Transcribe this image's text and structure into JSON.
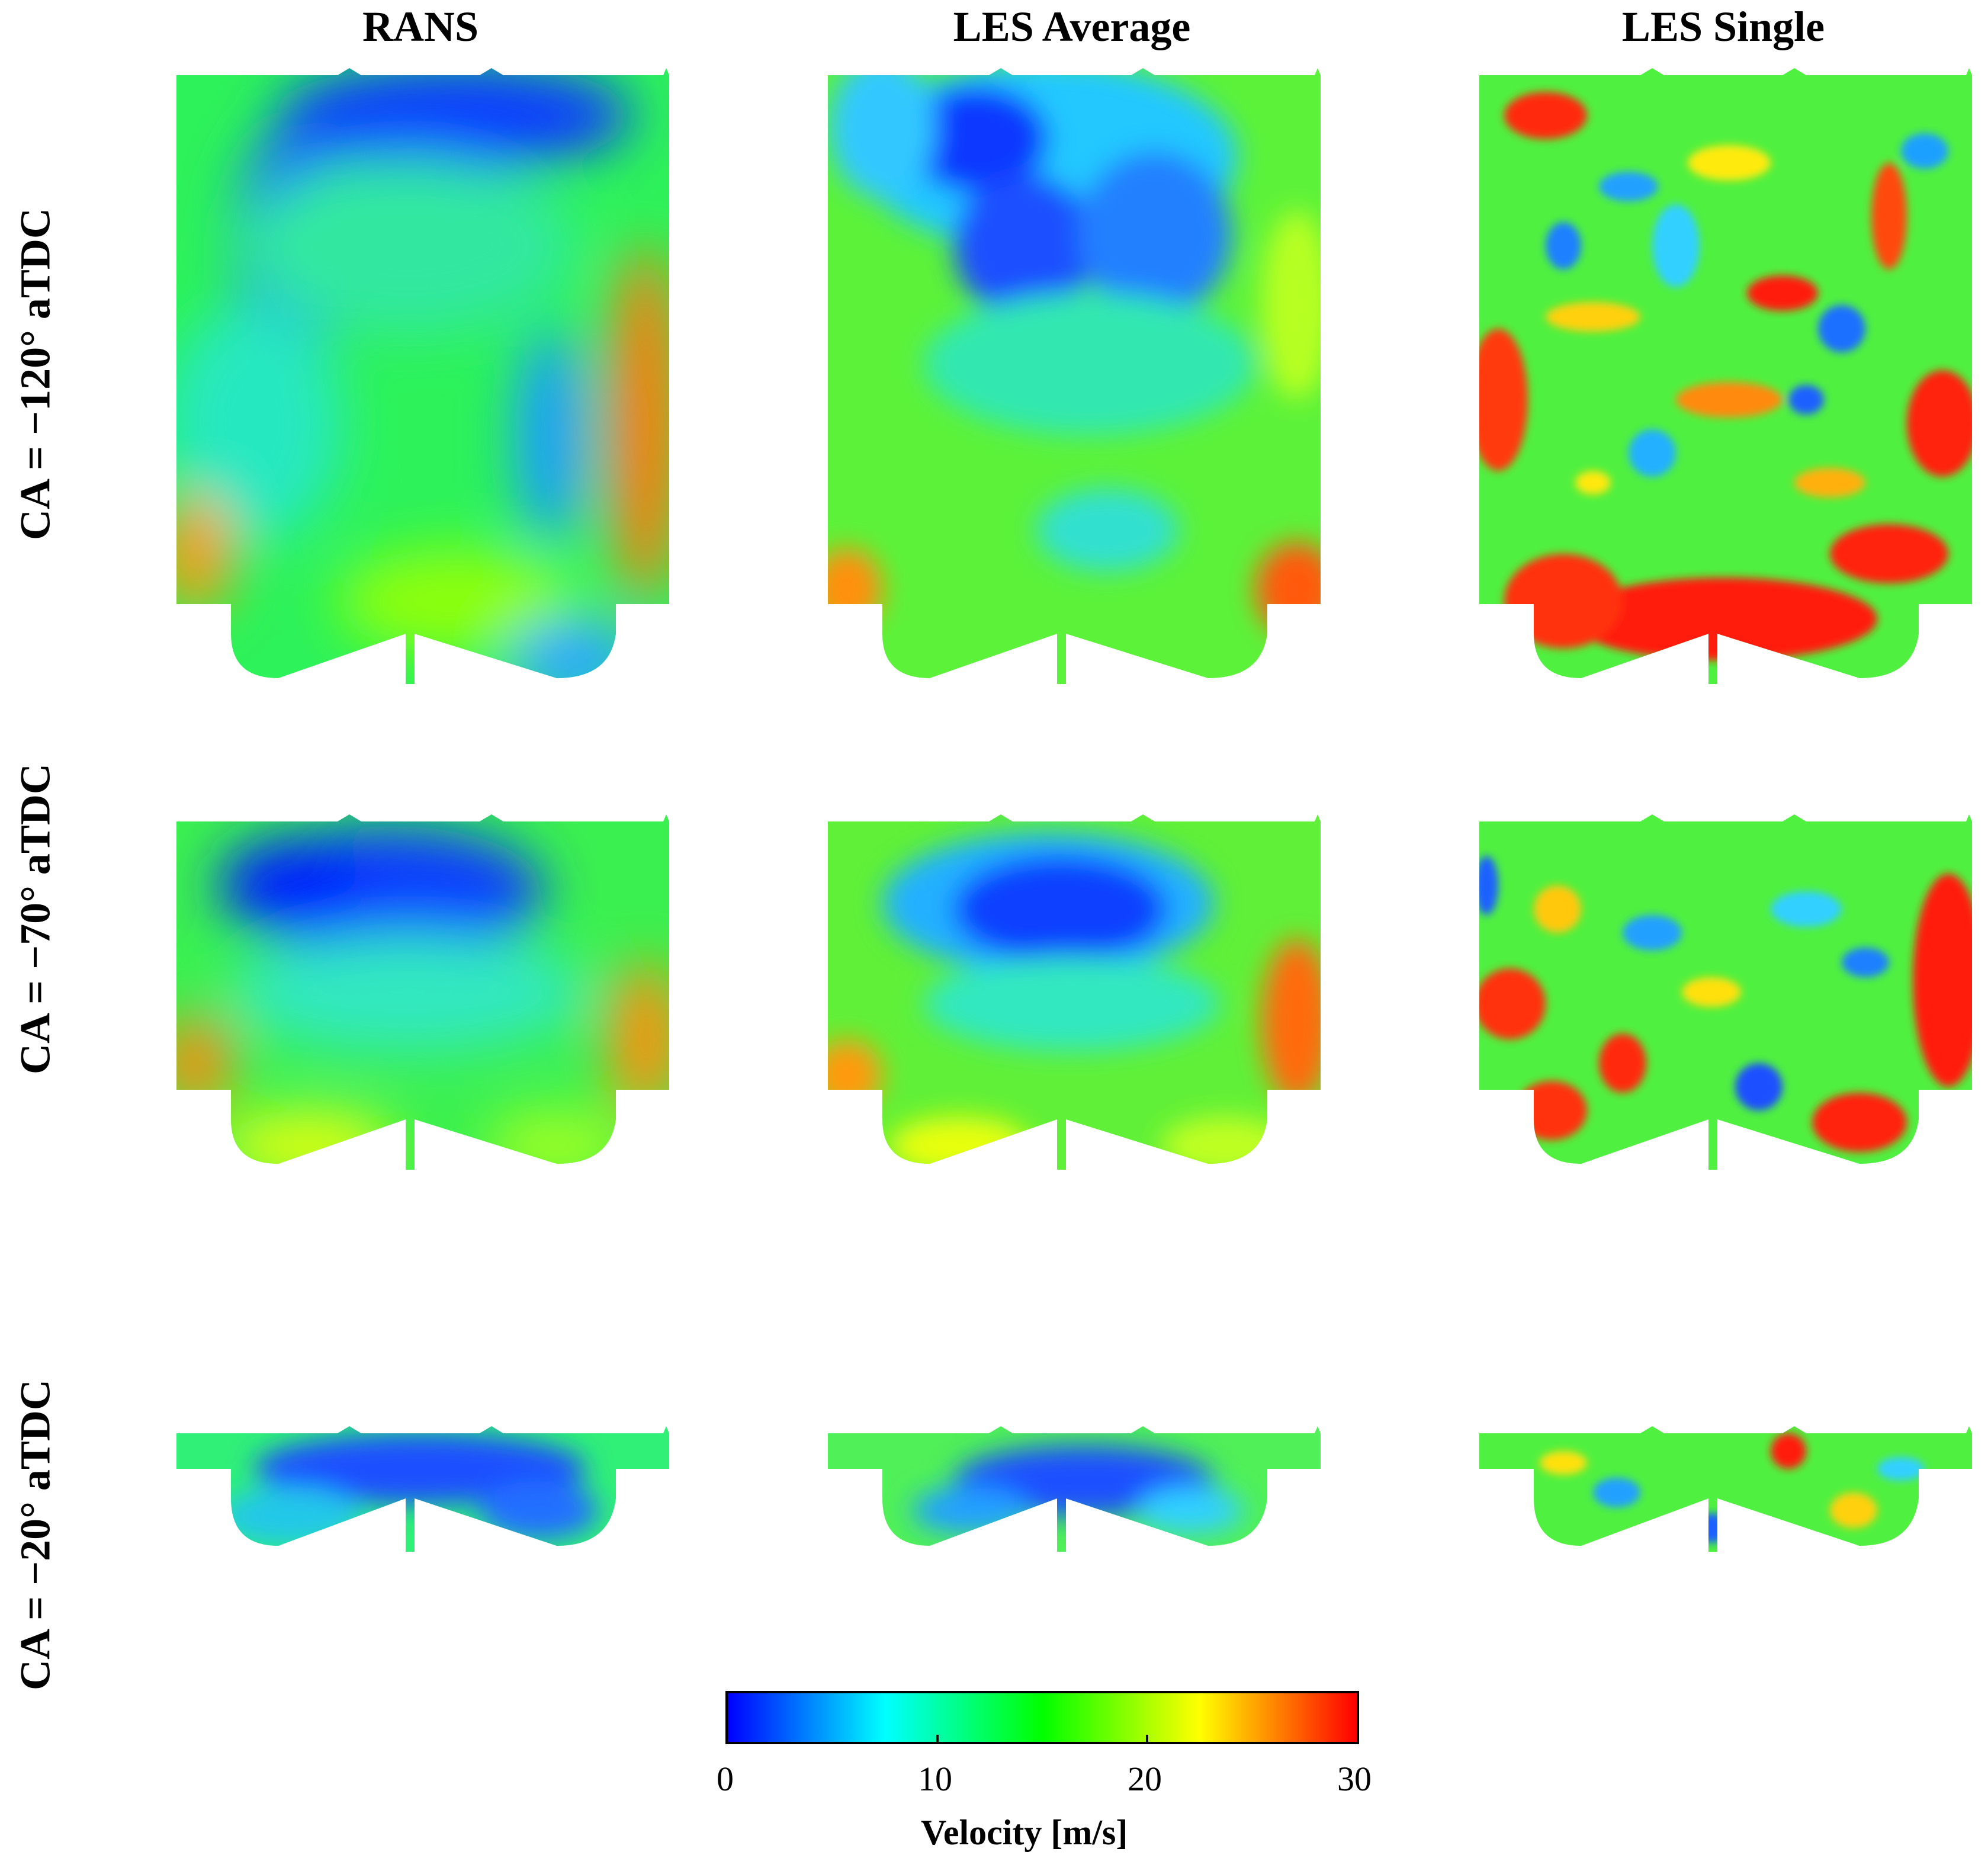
{
  "columns": [
    "RANS",
    "LES Average",
    "LES Single"
  ],
  "rows": [
    "CA = −120° aTDC",
    "CA = −70° aTDC",
    "CA = −20° aTDC"
  ],
  "colorbar": {
    "title": "Velocity [m/s]",
    "ticks": [
      "0",
      "10",
      "20",
      "30"
    ],
    "range": [
      0,
      30
    ],
    "colormap": [
      "#0000ff",
      "#00ffff",
      "#00ff00",
      "#ffff00",
      "#ff0000"
    ]
  }
}
